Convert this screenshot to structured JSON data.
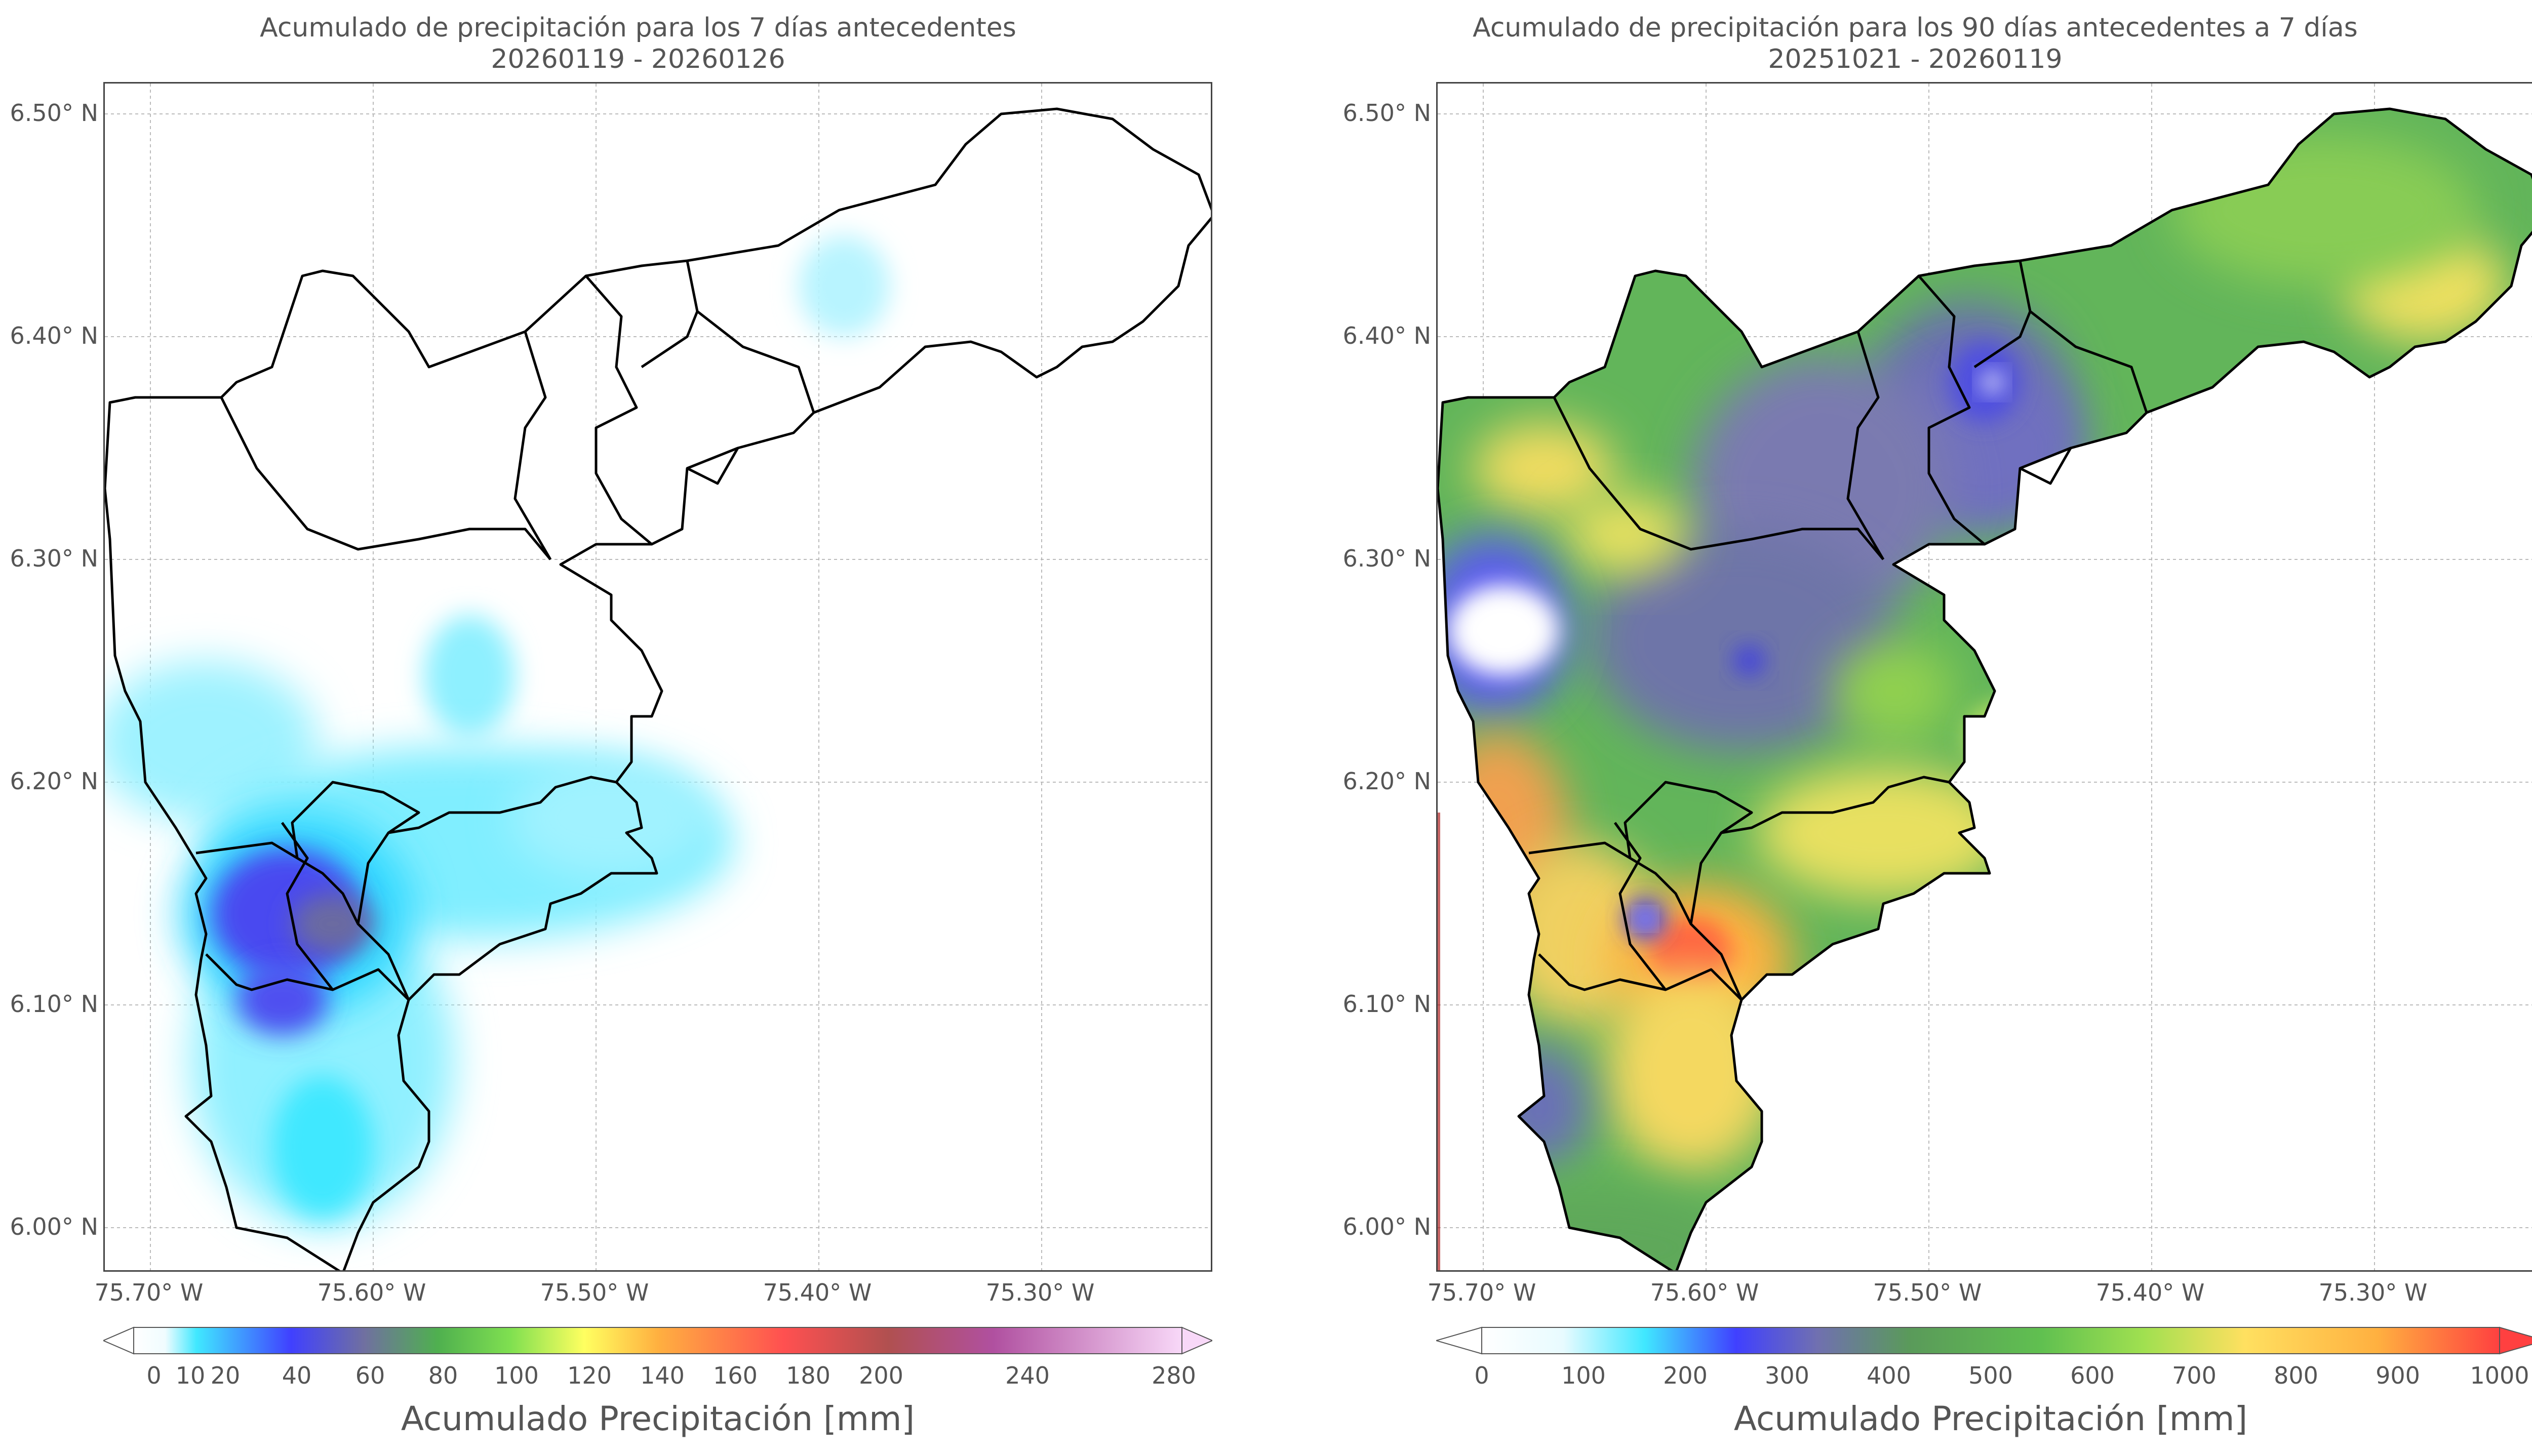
{
  "left_panel": {
    "title_line1": "Acumulado de precipitación para los 7 días antecedentes",
    "title_line2": "20260119 - 20260126",
    "y_ticks": [
      "6.50° N",
      "6.40° N",
      "6.30° N",
      "6.20° N",
      "6.10° N",
      "6.00° N"
    ],
    "x_ticks": [
      "75.70° W",
      "75.60° W",
      "75.50° W",
      "75.40° W",
      "75.30° W"
    ],
    "colorbar": {
      "title": "Acumulado Precipitación [mm]",
      "ticks": [
        "0",
        "10",
        "20",
        "40",
        "60",
        "80",
        "100",
        "120",
        "140",
        "160",
        "180",
        "200",
        "240",
        "280"
      ],
      "colors": [
        "#ffffff",
        "#e8fbff",
        "#40e8ff",
        "#4040ff",
        "#7070a0",
        "#4fb04f",
        "#80e050",
        "#ffff60",
        "#ffb040",
        "#ff6040",
        "#b04050",
        "#c050a0",
        "#f0c0f0"
      ]
    }
  },
  "right_panel": {
    "title_line1": "Acumulado de precipitación para los 90 días antecedentes a 7 días",
    "title_line2": "20251021 - 20260119",
    "y_ticks": [
      "6.50° N",
      "6.40° N",
      "6.30° N",
      "6.20° N",
      "6.10° N",
      "6.00° N"
    ],
    "x_ticks": [
      "75.70° W",
      "75.60° W",
      "75.50° W",
      "75.40° W",
      "75.30° W"
    ],
    "colorbar": {
      "title": "Acumulado Precipitación [mm]",
      "ticks": [
        "0",
        "100",
        "200",
        "300",
        "400",
        "500",
        "600",
        "700",
        "800",
        "900",
        "1000"
      ],
      "colors": [
        "#ffffff",
        "#40e8ff",
        "#4040ff",
        "#7070b0",
        "#5a9a5a",
        "#60c050",
        "#a0e050",
        "#ffe060",
        "#ffb040",
        "#ff5040"
      ]
    }
  }
}
